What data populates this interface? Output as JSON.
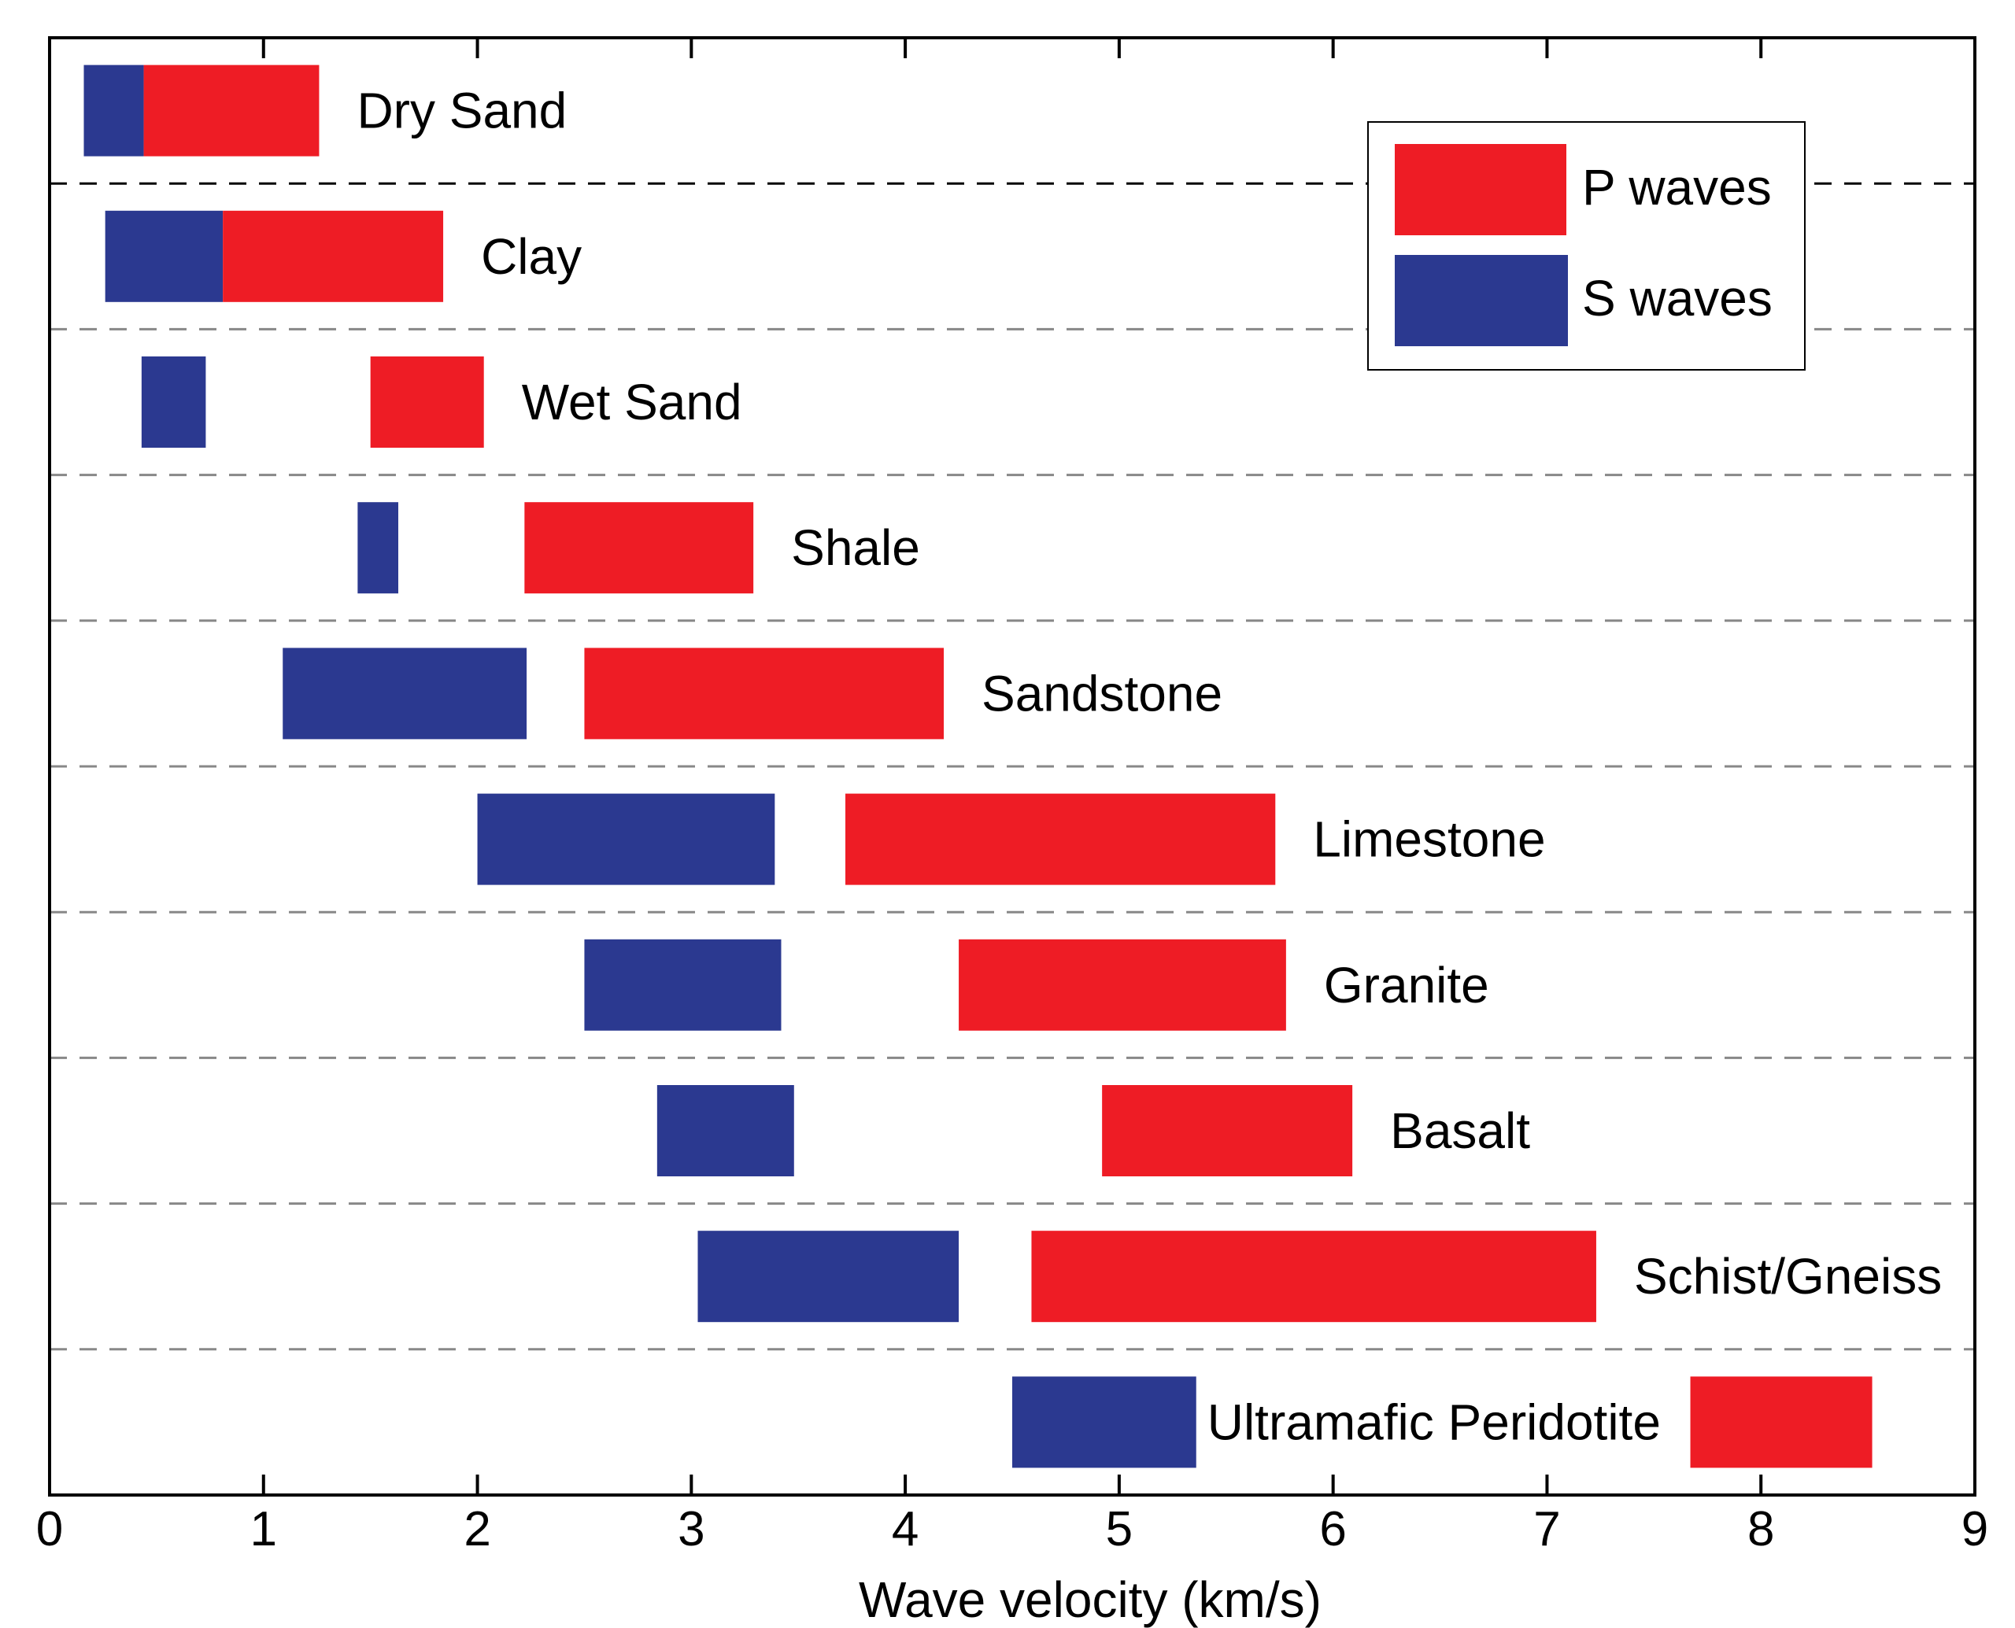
{
  "chart_data": {
    "type": "bar",
    "orientation": "horizontal-range",
    "xlabel": "Wave velocity (km/s)",
    "xlim": [
      0,
      9
    ],
    "xticks": [
      "0",
      "1",
      "2",
      "3",
      "4",
      "5",
      "6",
      "7",
      "8",
      "9"
    ],
    "colors": {
      "P": "#ee1c25",
      "S": "#2b3990"
    },
    "legend": {
      "position": "top-right",
      "entries": [
        {
          "key": "P",
          "label": "P waves"
        },
        {
          "key": "S",
          "label": "S waves"
        }
      ]
    },
    "rows": [
      {
        "name": "Dry Sand",
        "s": [
          0.16,
          0.44
        ],
        "p": [
          0.44,
          1.26
        ]
      },
      {
        "name": "Clay",
        "s": [
          0.26,
          0.81
        ],
        "p": [
          0.81,
          1.84
        ]
      },
      {
        "name": "Wet Sand",
        "s": [
          0.43,
          0.73
        ],
        "p": [
          1.5,
          2.03
        ]
      },
      {
        "name": "Shale",
        "s": [
          1.44,
          1.63
        ],
        "p": [
          2.22,
          3.29
        ]
      },
      {
        "name": "Sandstone",
        "s": [
          1.09,
          2.23
        ],
        "p": [
          2.5,
          4.18
        ]
      },
      {
        "name": "Limestone",
        "s": [
          2.0,
          3.39
        ],
        "p": [
          3.72,
          5.73
        ]
      },
      {
        "name": "Granite",
        "s": [
          2.5,
          3.42
        ],
        "p": [
          4.25,
          5.78
        ]
      },
      {
        "name": "Basalt",
        "s": [
          2.84,
          3.48
        ],
        "p": [
          4.92,
          6.09
        ]
      },
      {
        "name": "Schist/Gneiss",
        "s": [
          3.03,
          4.25
        ],
        "p": [
          4.59,
          7.23
        ]
      },
      {
        "name": "Ultramafic Peridotite",
        "s": [
          4.5,
          5.36
        ],
        "p": [
          7.67,
          8.52
        ]
      }
    ]
  }
}
